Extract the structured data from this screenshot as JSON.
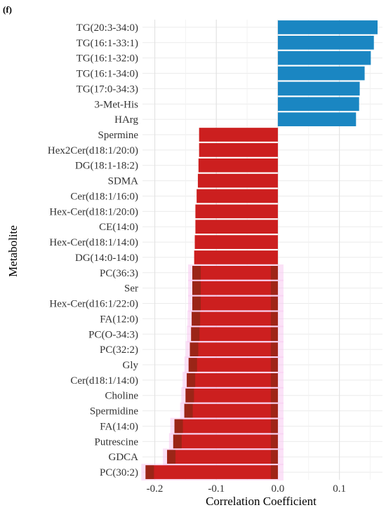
{
  "panel_label": "(f)",
  "chart_data": {
    "type": "bar",
    "orientation": "horizontal",
    "xlabel": "Correlation Coefficient",
    "ylabel": "Metabolite",
    "xlim": [
      -0.22,
      0.17
    ],
    "xticks": [
      -0.2,
      -0.1,
      0.0,
      0.1
    ],
    "xtick_labels": [
      "-0.2",
      "-0.1",
      "0.0",
      "0.1"
    ],
    "grid": true,
    "legend": "none",
    "colors": {
      "positive": "#1a86c2",
      "negative": "#cc1f1f",
      "overlay": "#7a2a12",
      "halo": "#f7c8f0"
    },
    "categories": [
      "TG(20:3-34:0)",
      "TG(16:1-33:1)",
      "TG(16:1-32:0)",
      "TG(16:1-34:0)",
      "TG(17:0-34:3)",
      "3-Met-His",
      "HArg",
      "Spermine",
      "Hex2Cer(d18:1/20:0)",
      "DG(18:1-18:2)",
      "SDMA",
      "Cer(d18:1/16:0)",
      "Hex-Cer(d18:1/20:0)",
      "CE(14:0)",
      "Hex-Cer(d18:1/14:0)",
      "DG(14:0-14:0)",
      "PC(36:3)",
      "Ser",
      "Hex-Cer(d16:1/22:0)",
      "FA(12:0)",
      "PC(O-34:3)",
      "PC(32:2)",
      "Gly",
      "Cer(d18:1/14:0)",
      "Choline",
      "Spermidine",
      "FA(14:0)",
      "Putrescine",
      "GDCA",
      "PC(30:2)"
    ],
    "values": [
      0.162,
      0.156,
      0.151,
      0.141,
      0.133,
      0.132,
      0.127,
      -0.128,
      -0.128,
      -0.129,
      -0.13,
      -0.132,
      -0.134,
      -0.134,
      -0.135,
      -0.136,
      -0.139,
      -0.139,
      -0.139,
      -0.14,
      -0.141,
      -0.143,
      -0.145,
      -0.148,
      -0.15,
      -0.152,
      -0.168,
      -0.17,
      -0.18,
      -0.215
    ]
  }
}
